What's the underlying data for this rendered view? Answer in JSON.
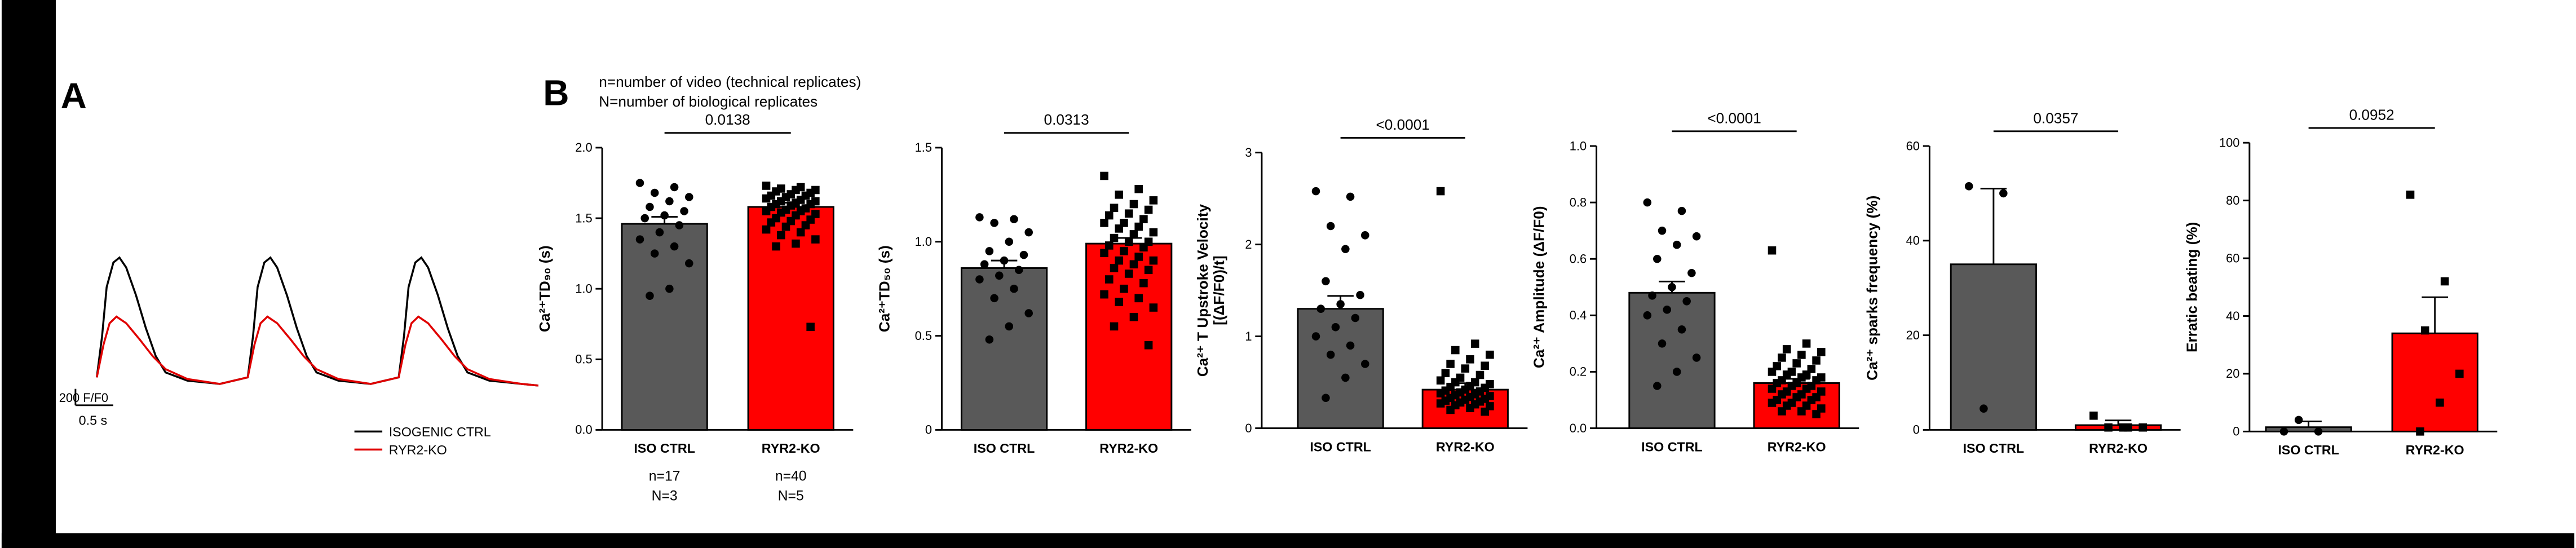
{
  "panel_labels": [
    "A",
    "B"
  ],
  "notes": [
    "n=number of video (technical replicates)",
    "N=number of biological replicates"
  ],
  "chart_data": [
    {
      "type": "trace",
      "scale_bar": {
        "y_label": "200 F/F0",
        "y_value": 200,
        "x_label": "0.5 s",
        "x_value": 0.5
      },
      "series": [
        {
          "name": "ISOGENIC CTRL",
          "color": "#000000",
          "x": [
            0,
            0.07,
            0.13,
            0.22,
            0.3,
            0.39,
            0.52,
            0.65,
            0.78,
            0.91,
            1.2,
            1.63,
            2,
            2.07,
            2.13,
            2.22,
            2.3,
            2.39,
            2.52,
            2.65,
            2.78,
            2.91,
            3.2,
            3.63,
            4,
            4.07,
            4.13,
            4.22,
            4.3,
            4.39,
            4.52,
            4.65,
            4.78,
            4.91,
            5.2,
            5.63,
            5.85
          ],
          "values": [
            100,
            600,
            1200,
            1500,
            1560,
            1440,
            1100,
            700,
            360,
            160,
            60,
            20,
            100,
            600,
            1200,
            1500,
            1560,
            1440,
            1100,
            700,
            360,
            160,
            60,
            20,
            100,
            600,
            1200,
            1500,
            1560,
            1440,
            1100,
            700,
            360,
            160,
            60,
            20,
            0
          ]
        },
        {
          "name": "RYR2-KO",
          "color": "#e00000",
          "x": [
            0,
            0.09,
            0.17,
            0.26,
            0.39,
            0.57,
            0.74,
            0.91,
            1.2,
            1.63,
            2,
            2.09,
            2.17,
            2.26,
            2.39,
            2.57,
            2.74,
            2.91,
            3.2,
            3.63,
            4,
            4.09,
            4.17,
            4.26,
            4.39,
            4.57,
            4.74,
            4.91,
            5.2,
            5.63,
            5.85
          ],
          "values": [
            100,
            500,
            760,
            840,
            760,
            560,
            360,
            200,
            80,
            20,
            100,
            500,
            760,
            840,
            760,
            560,
            360,
            200,
            80,
            20,
            100,
            500,
            760,
            840,
            760,
            560,
            360,
            200,
            80,
            20,
            0
          ]
        }
      ]
    },
    {
      "type": "bar",
      "ylabel": [
        "Ca²⁺TD₉₀ (s)"
      ],
      "categories": [
        "ISO CTRL",
        "RYR2-KO"
      ],
      "values": [
        1.46,
        1.58
      ],
      "errors": [
        0.05,
        0.03
      ],
      "colors": [
        "#595959",
        "#ff0000"
      ],
      "markers": [
        "circle",
        "square"
      ],
      "points": [
        [
          1.75,
          1.72,
          1.68,
          1.65,
          1.62,
          1.58,
          1.55,
          1.52,
          1.5,
          1.45,
          1.4,
          1.35,
          1.3,
          1.25,
          1.18,
          1.0,
          0.95
        ],
        [
          1.73,
          1.72,
          1.71,
          1.7,
          1.7,
          1.69,
          1.68,
          1.67,
          1.66,
          1.66,
          1.65,
          1.64,
          1.63,
          1.62,
          1.62,
          1.61,
          1.6,
          1.6,
          1.59,
          1.58,
          1.57,
          1.56,
          1.55,
          1.55,
          1.54,
          1.53,
          1.52,
          1.5,
          1.49,
          1.48,
          1.47,
          1.45,
          1.44,
          1.42,
          1.4,
          1.38,
          1.35,
          1.32,
          1.3,
          0.73
        ]
      ],
      "ylim": [
        0,
        2
      ],
      "yticks": [
        {
          "value": 0,
          "label": "0.0"
        },
        0.5,
        {
          "value": 1,
          "label": "1.0"
        },
        1.5,
        {
          "value": 2,
          "label": "2.0"
        }
      ],
      "significance": "0.0138",
      "n_labels": [
        [
          "n=17",
          "N=3"
        ],
        [
          "n=40",
          "N=5"
        ]
      ]
    },
    {
      "type": "bar",
      "ylabel": [
        "Ca²⁺TD₅₀ (s)"
      ],
      "categories": [
        "ISO CTRL",
        "RYR2-KO"
      ],
      "values": [
        0.86,
        0.99
      ],
      "errors": [
        0.04,
        0.03
      ],
      "colors": [
        "#595959",
        "#ff0000"
      ],
      "markers": [
        "circle",
        "square"
      ],
      "points": [
        [
          1.13,
          1.12,
          1.1,
          1.05,
          1.0,
          0.95,
          0.93,
          0.9,
          0.88,
          0.85,
          0.82,
          0.8,
          0.75,
          0.7,
          0.62,
          0.55,
          0.48
        ],
        [
          1.35,
          1.28,
          1.25,
          1.22,
          1.2,
          1.18,
          1.17,
          1.15,
          1.14,
          1.12,
          1.1,
          1.1,
          1.08,
          1.07,
          1.05,
          1.04,
          1.02,
          1.0,
          1.0,
          0.98,
          0.97,
          0.95,
          0.94,
          0.92,
          0.9,
          0.9,
          0.88,
          0.86,
          0.85,
          0.83,
          0.8,
          0.78,
          0.75,
          0.72,
          0.7,
          0.68,
          0.65,
          0.6,
          0.55,
          0.45
        ]
      ],
      "ylim": [
        0,
        1.5
      ],
      "yticks": [
        0,
        0.5,
        {
          "value": 1,
          "label": "1.0"
        },
        1.5
      ],
      "significance": "0.0313"
    },
    {
      "type": "bar",
      "ylabel": [
        "Ca²⁺ T Upstroke Velocity",
        "[(ΔF/F0)/t]"
      ],
      "categories": [
        "ISO CTRL",
        "RYR2-KO"
      ],
      "values": [
        1.3,
        0.42
      ],
      "errors": [
        0.14,
        0.07
      ],
      "colors": [
        "#595959",
        "#ff0000"
      ],
      "markers": [
        "circle",
        "square"
      ],
      "points": [
        [
          2.58,
          2.52,
          2.2,
          2.1,
          1.95,
          1.6,
          1.45,
          1.35,
          1.3,
          1.2,
          1.1,
          1.0,
          0.9,
          0.8,
          0.7,
          0.55,
          0.33
        ],
        [
          2.58,
          0.92,
          0.85,
          0.8,
          0.75,
          0.7,
          0.68,
          0.65,
          0.6,
          0.58,
          0.55,
          0.52,
          0.5,
          0.5,
          0.48,
          0.46,
          0.45,
          0.44,
          0.42,
          0.41,
          0.4,
          0.39,
          0.38,
          0.37,
          0.36,
          0.35,
          0.34,
          0.33,
          0.32,
          0.31,
          0.3,
          0.29,
          0.28,
          0.27,
          0.26,
          0.25,
          0.24,
          0.22,
          0.2,
          0.18
        ]
      ],
      "ylim": [
        0,
        3
      ],
      "yticks": [
        0,
        1,
        2,
        3
      ],
      "significance": "<0.0001"
    },
    {
      "type": "bar",
      "ylabel": [
        "Ca²⁺ Amplitude (ΔF/F0)"
      ],
      "categories": [
        "ISO CTRL",
        "RYR2-KO"
      ],
      "values": [
        0.48,
        0.16
      ],
      "errors": [
        0.04,
        0.015
      ],
      "colors": [
        "#595959",
        "#ff0000"
      ],
      "markers": [
        "circle",
        "square"
      ],
      "points": [
        [
          0.8,
          0.77,
          0.7,
          0.68,
          0.65,
          0.6,
          0.55,
          0.5,
          0.47,
          0.45,
          0.42,
          0.4,
          0.35,
          0.3,
          0.25,
          0.2,
          0.15
        ],
        [
          0.63,
          0.3,
          0.28,
          0.27,
          0.26,
          0.25,
          0.24,
          0.23,
          0.22,
          0.21,
          0.2,
          0.2,
          0.19,
          0.19,
          0.18,
          0.18,
          0.17,
          0.17,
          0.16,
          0.16,
          0.15,
          0.15,
          0.14,
          0.14,
          0.13,
          0.13,
          0.12,
          0.12,
          0.11,
          0.11,
          0.1,
          0.1,
          0.09,
          0.09,
          0.08,
          0.08,
          0.07,
          0.06,
          0.06,
          0.05
        ]
      ],
      "ylim": [
        0,
        1
      ],
      "yticks": [
        {
          "value": 0,
          "label": "0.0"
        },
        0.2,
        0.4,
        0.6,
        0.8,
        {
          "value": 1,
          "label": "1.0"
        }
      ],
      "significance": "<0.0001"
    },
    {
      "type": "bar",
      "ylabel": [
        "Ca²⁺ sparks frequency (%)"
      ],
      "categories": [
        "ISO CTRL",
        "RYR2-KO"
      ],
      "values": [
        35,
        1
      ],
      "errors": [
        16,
        1
      ],
      "colors": [
        "#595959",
        "#ff0000"
      ],
      "markers": [
        "circle",
        "square"
      ],
      "points": [
        [
          51.5,
          50,
          4.5
        ],
        [
          3,
          0.5,
          0.5,
          0.5,
          0.5
        ]
      ],
      "ylim": [
        0,
        60
      ],
      "yticks": [
        0,
        20,
        40,
        60
      ],
      "significance": "0.0357"
    },
    {
      "type": "bar",
      "ylabel": [
        "Erratic beating (%)"
      ],
      "categories": [
        "ISO CTRL",
        "RYR2-KO"
      ],
      "values": [
        1.5,
        34
      ],
      "errors": [
        2,
        12.5
      ],
      "colors": [
        "#595959",
        "#ff0000"
      ],
      "markers": [
        "circle",
        "square"
      ],
      "points": [
        [
          0,
          0,
          4
        ],
        [
          82,
          52,
          35,
          20,
          10,
          0
        ]
      ],
      "ylim": [
        0,
        100
      ],
      "yticks": [
        0,
        20,
        40,
        60,
        80,
        100
      ],
      "significance": "0.0952"
    }
  ]
}
